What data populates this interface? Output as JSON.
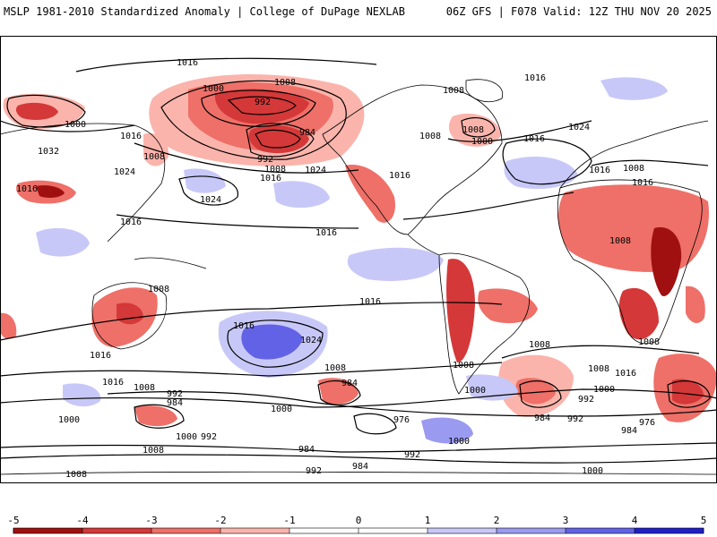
{
  "header": {
    "title_left": "MSLP 1981-2010 Standardized Anomaly | College of DuPage NEXLAB",
    "title_right": "06Z GFS | F078 Valid: 12Z THU NOV 20 2025"
  },
  "colors": {
    "neg_strong": "#a01010",
    "neg_3": "#d43838",
    "neg_2": "#ee7068",
    "neg_1": "#fbb4ac",
    "pos_1": "#c8c8f8",
    "pos_2": "#9a9af0",
    "pos_3": "#6262e6",
    "pos_strong": "#2020c8",
    "contour": "#000000",
    "coast": "#000000"
  },
  "isobars": {
    "labels": [
      "1016",
      "1008",
      "1000",
      "992",
      "1008",
      "1000",
      "984",
      "992",
      "1008",
      "1016",
      "1024",
      "1016",
      "1008",
      "1032",
      "1024",
      "1016",
      "1024",
      "1016",
      "1016",
      "1008",
      "1016",
      "1008",
      "1000",
      "1016",
      "1024",
      "1016",
      "1016",
      "1008",
      "1008",
      "1016",
      "1008",
      "1016",
      "1008",
      "1000",
      "1016",
      "992",
      "984",
      "1008",
      "1000",
      "992",
      "1008",
      "984",
      "976",
      "1000",
      "984",
      "1008",
      "1000",
      "992",
      "976",
      "984",
      "1000",
      "1016",
      "1016",
      "1024",
      "1008",
      "1008",
      "992",
      "1000",
      "992",
      "984",
      "1000",
      "1008",
      "1016",
      "1008",
      "992",
      "984"
    ]
  },
  "colorbar": {
    "ticks": [
      "-5",
      "-4",
      "-3",
      "-2",
      "-1",
      "0",
      "1",
      "2",
      "3",
      "4",
      "5"
    ],
    "values": [
      -5,
      -4,
      -3,
      -2,
      -1,
      0,
      1,
      2,
      3,
      4,
      5
    ]
  }
}
